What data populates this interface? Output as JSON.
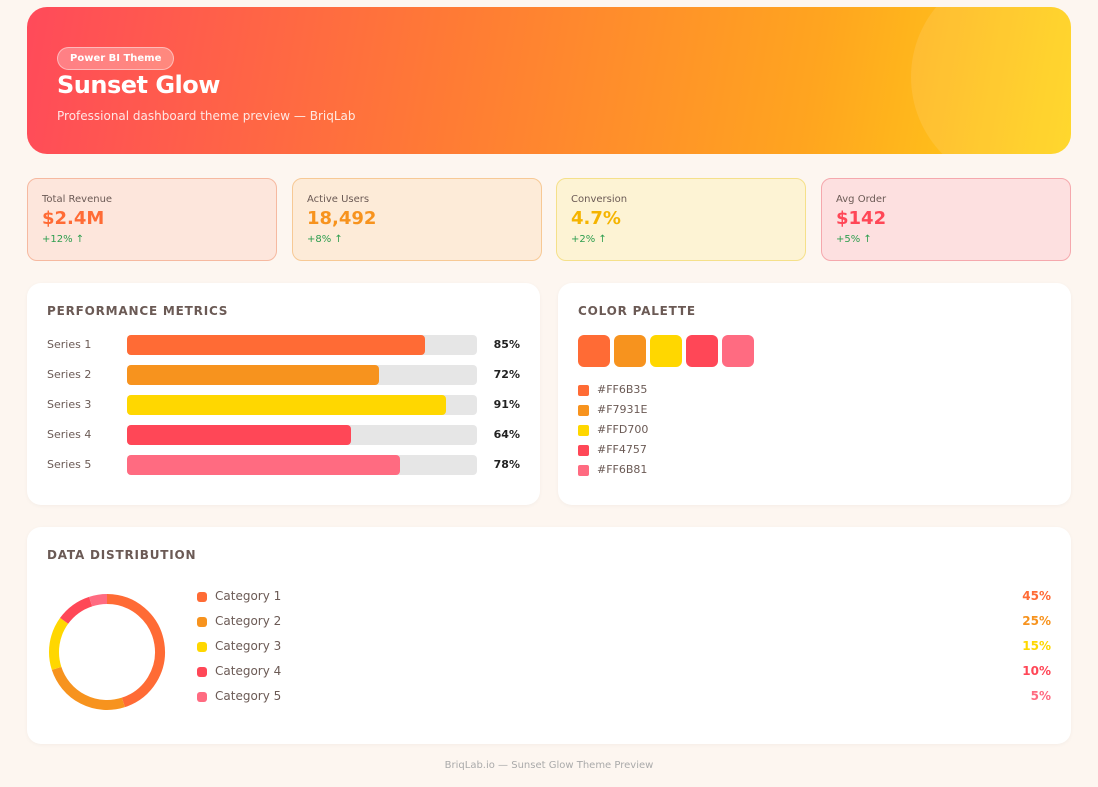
{
  "header": {
    "badge": "Power BI Theme",
    "title": "Sunset Glow",
    "subtitle": "Professional dashboard theme preview — BriqLab"
  },
  "kpis": [
    {
      "label": "Total Revenue",
      "value": "$2.4M",
      "change": "+12% ↑"
    },
    {
      "label": "Active Users",
      "value": "18,492",
      "change": "+8% ↑"
    },
    {
      "label": "Conversion",
      "value": "4.7%",
      "change": "+2% ↑"
    },
    {
      "label": "Avg Order",
      "value": "$142",
      "change": "+5% ↑"
    }
  ],
  "performance": {
    "title": "PERFORMANCE METRICS",
    "series": [
      {
        "name": "Series 1",
        "value": 85,
        "value_label": "85%"
      },
      {
        "name": "Series 2",
        "value": 72,
        "value_label": "72%"
      },
      {
        "name": "Series 3",
        "value": 91,
        "value_label": "91%"
      },
      {
        "name": "Series 4",
        "value": 64,
        "value_label": "64%"
      },
      {
        "name": "Series 5",
        "value": 78,
        "value_label": "78%"
      }
    ]
  },
  "palette": {
    "title": "COLOR PALETTE",
    "colors": [
      "#FF6B35",
      "#F7931E",
      "#FFD700",
      "#FF4757",
      "#FF6B81"
    ]
  },
  "distribution": {
    "title": "DATA DISTRIBUTION",
    "categories": [
      {
        "name": "Category 1",
        "value": 45,
        "value_label": "45%"
      },
      {
        "name": "Category 2",
        "value": 25,
        "value_label": "25%"
      },
      {
        "name": "Category 3",
        "value": 15,
        "value_label": "15%"
      },
      {
        "name": "Category 4",
        "value": 10,
        "value_label": "10%"
      },
      {
        "name": "Category 5",
        "value": 5,
        "value_label": "5%"
      }
    ]
  },
  "footer": "BriqLab.io — Sunset Glow Theme Preview"
}
